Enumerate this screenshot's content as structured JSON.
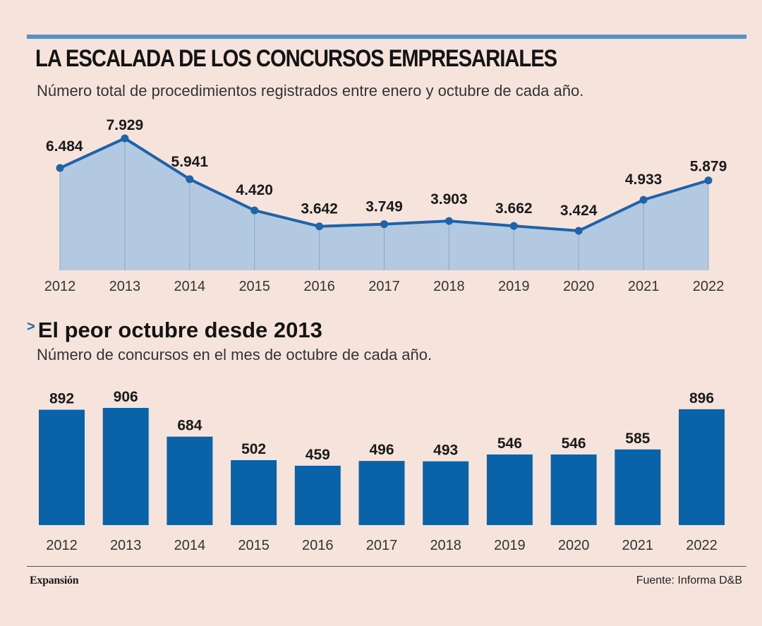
{
  "header": {
    "title": "LA ESCALADA DE LOS CONCURSOS EMPRESARIALES",
    "subtitle": "Número total de procedimientos registrados entre enero y octubre de cada año."
  },
  "section2": {
    "marker": ">",
    "title": "El peor octubre desde 2013",
    "subtitle": "Número de concursos en el mes de octubre de cada año."
  },
  "footer": {
    "brand": "Expansión",
    "source": "Fuente: Informa D&B"
  },
  "colors": {
    "line": "#1f63a8",
    "area": "#b3c9e1",
    "bar": "#0a62a9",
    "accent_rule": "#5a8fc4"
  },
  "chart_data": [
    {
      "type": "area",
      "title": "LA ESCALADA DE LOS CONCURSOS EMPRESARIALES",
      "subtitle": "Número total de procedimientos registrados entre enero y octubre de cada año.",
      "categories": [
        "2012",
        "2013",
        "2014",
        "2015",
        "2016",
        "2017",
        "2018",
        "2019",
        "2020",
        "2021",
        "2022"
      ],
      "values": [
        6484,
        7929,
        5941,
        4420,
        3642,
        3749,
        3903,
        3662,
        3424,
        4933,
        5879
      ],
      "data_labels": [
        "6.484",
        "7.929",
        "5.941",
        "4.420",
        "3.642",
        "3.749",
        "3.903",
        "3.662",
        "3.424",
        "4.933",
        "5.879"
      ],
      "ylim": [
        1500,
        8000
      ],
      "grid": false,
      "xlabel": "",
      "ylabel": ""
    },
    {
      "type": "bar",
      "title": "El peor octubre desde 2013",
      "subtitle": "Número de concursos en el mes de octubre de cada año.",
      "categories": [
        "2012",
        "2013",
        "2014",
        "2015",
        "2016",
        "2017",
        "2018",
        "2019",
        "2020",
        "2021",
        "2022"
      ],
      "values": [
        892,
        906,
        684,
        502,
        459,
        496,
        493,
        546,
        546,
        585,
        896
      ],
      "data_labels": [
        "892",
        "906",
        "684",
        "502",
        "459",
        "496",
        "493",
        "546",
        "546",
        "585",
        "896"
      ],
      "ylim": [
        0,
        906
      ],
      "grid": false,
      "xlabel": "",
      "ylabel": ""
    }
  ]
}
